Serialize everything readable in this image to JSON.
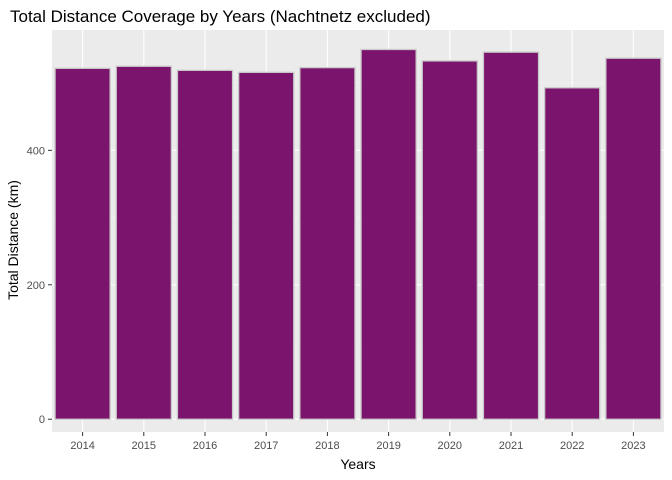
{
  "chart_data": {
    "type": "bar",
    "title": "Total Distance Coverage by Years (Nachtnetz excluded)",
    "xlabel": "Years",
    "ylabel": "Total Distance (km)",
    "categories": [
      "2014",
      "2015",
      "2016",
      "2017",
      "2018",
      "2019",
      "2020",
      "2021",
      "2022",
      "2023"
    ],
    "values": [
      522,
      525,
      519,
      516,
      523,
      550,
      533,
      546,
      493,
      537
    ],
    "ylim": [
      -19,
      579
    ],
    "yticks": [
      0,
      200,
      400
    ],
    "ytick_labels": [
      "0",
      "200",
      "400"
    ],
    "grid": true,
    "legend": "none",
    "colors": {
      "bar_fill": "#7B146C",
      "bar_outline": "#C8C8C8",
      "panel_background": "#EBEBEB",
      "grid_major": "#FFFFFF",
      "grid_minor": "#F5F5F5"
    }
  }
}
